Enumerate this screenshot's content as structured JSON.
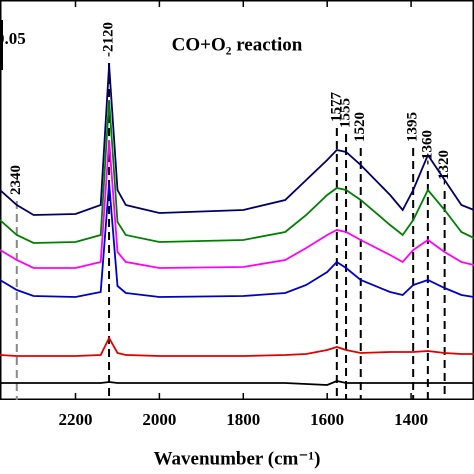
{
  "chart_data": {
    "type": "line",
    "title": "CO+O₂ reaction",
    "xlabel": "Wavenumber (cm⁻¹)",
    "x": [
      2380,
      2340,
      2300,
      2200,
      2140,
      2120,
      2100,
      2080,
      2000,
      1800,
      1700,
      1650,
      1600,
      1577,
      1555,
      1520,
      1450,
      1420,
      1395,
      1360,
      1320,
      1280,
      1250
    ],
    "series": [
      {
        "color": "#000066",
        "values": [
          0.21,
          0.195,
          0.185,
          0.186,
          0.195,
          0.335,
          0.21,
          0.195,
          0.187,
          0.19,
          0.2,
          0.22,
          0.24,
          0.25,
          0.248,
          0.235,
          0.205,
          0.19,
          0.21,
          0.245,
          0.22,
          0.195,
          0.19
        ]
      },
      {
        "color": "#008000",
        "values": [
          0.18,
          0.165,
          0.157,
          0.158,
          0.165,
          0.3,
          0.178,
          0.165,
          0.158,
          0.16,
          0.168,
          0.185,
          0.205,
          0.212,
          0.21,
          0.2,
          0.175,
          0.165,
          0.18,
          0.21,
          0.19,
          0.168,
          0.162
        ]
      },
      {
        "color": "#ff00ff",
        "values": [
          0.15,
          0.14,
          0.132,
          0.132,
          0.138,
          0.26,
          0.148,
          0.138,
          0.132,
          0.133,
          0.14,
          0.152,
          0.165,
          0.17,
          0.168,
          0.16,
          0.145,
          0.138,
          0.15,
          0.16,
          0.148,
          0.138,
          0.135
        ]
      },
      {
        "color": "#0000cc",
        "values": [
          0.12,
          0.11,
          0.104,
          0.103,
          0.108,
          0.217,
          0.114,
          0.107,
          0.103,
          0.104,
          0.107,
          0.115,
          0.128,
          0.138,
          0.132,
          0.12,
          0.108,
          0.105,
          0.115,
          0.12,
          0.112,
          0.105,
          0.103
        ]
      },
      {
        "color": "#e00000",
        "values": [
          0.045,
          0.044,
          0.044,
          0.044,
          0.045,
          0.062,
          0.047,
          0.045,
          0.044,
          0.044,
          0.045,
          0.046,
          0.05,
          0.053,
          0.05,
          0.047,
          0.048,
          0.048,
          0.048,
          0.049,
          0.047,
          0.046,
          0.046
        ]
      },
      {
        "color": "#000000",
        "values": [
          0.017,
          0.017,
          0.017,
          0.017,
          0.017,
          0.018,
          0.017,
          0.017,
          0.017,
          0.017,
          0.017,
          0.016,
          0.015,
          0.019,
          0.017,
          0.017,
          0.017,
          0.017,
          0.017,
          0.017,
          0.017,
          0.017,
          0.017
        ]
      }
    ],
    "xlim": [
      2380,
      1250
    ],
    "ylim": [
      0,
      0.4
    ],
    "xticks": [
      2200,
      2000,
      1800,
      1600,
      1400
    ],
    "scale_bar": 0.05,
    "annotations": [
      {
        "x": 2340,
        "label": "2340"
      },
      {
        "x": 2120,
        "label": "-2120"
      },
      {
        "x": 1577,
        "label": "1577"
      },
      {
        "x": 1555,
        "label": "1555"
      },
      {
        "x": 1520,
        "label": "1520"
      },
      {
        "x": 1395,
        "label": "1395"
      },
      {
        "x": 1360,
        "label": "-1360"
      },
      {
        "x": 1320,
        "label": "-1320"
      }
    ]
  }
}
